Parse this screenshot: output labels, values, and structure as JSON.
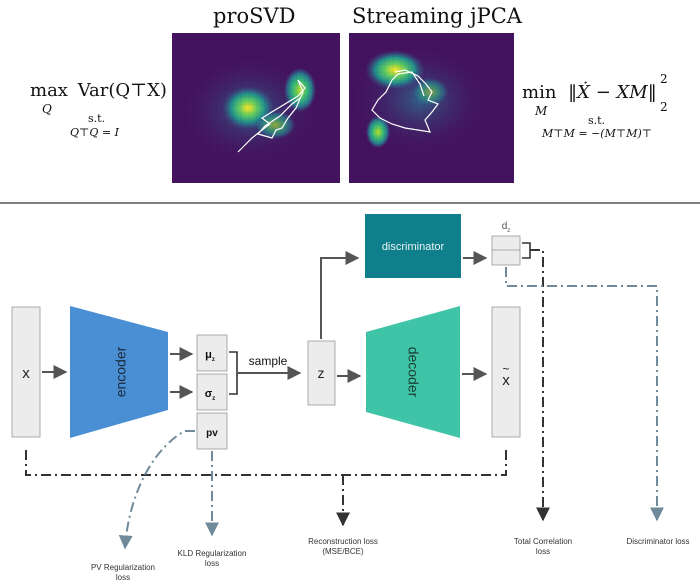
{
  "top": {
    "title_left": "proSVD",
    "title_right": "Streaming jPCA",
    "eq_left_main": "max",
    "eq_left_sub": "Q",
    "eq_left_rest": "Var(Q⊤X)",
    "eq_left_st": "s.t.",
    "eq_left_constraint": "Q⊤Q = I",
    "eq_right_main": "min",
    "eq_right_sub": "M",
    "eq_right_rest": "‖Ẋ − XM‖",
    "eq_right_sup": "2",
    "eq_right_subn": "2",
    "eq_right_st": "s.t.",
    "eq_right_constraint": "M⊤M = −(M⊤M)⊤"
  },
  "nodes": {
    "x": "x",
    "encoder": "encoder",
    "mu": "μ",
    "mu_sub": "z",
    "sigma": "σ",
    "sigma_sub": "z",
    "pv": "pv",
    "sample": "sample",
    "z": "z",
    "decoder": "decoder",
    "xhat": "x",
    "xhat_accent": "~",
    "discriminator": "discriminator",
    "dz": "d",
    "dz_sub": "z"
  },
  "losses": {
    "pv_reg_1": "PV Regularization",
    "pv_reg_2": "loss",
    "kld_1": "KLD Regularization",
    "kld_2": "loss",
    "recon_1": "Reconstruction loss",
    "recon_2": "(MSE/BCE)",
    "tc_1": "Total Correlation",
    "tc_2": "loss",
    "disc": "Discriminator loss"
  },
  "colors": {
    "encoder": "#4a8fd4",
    "decoder": "#40c4a7",
    "discriminator": "#107f8c",
    "box": "#ececec",
    "arrow": "#555555",
    "dash_dark": "#333333",
    "dash_blue": "#6f8a9a",
    "heat_bg": "#44135f"
  }
}
